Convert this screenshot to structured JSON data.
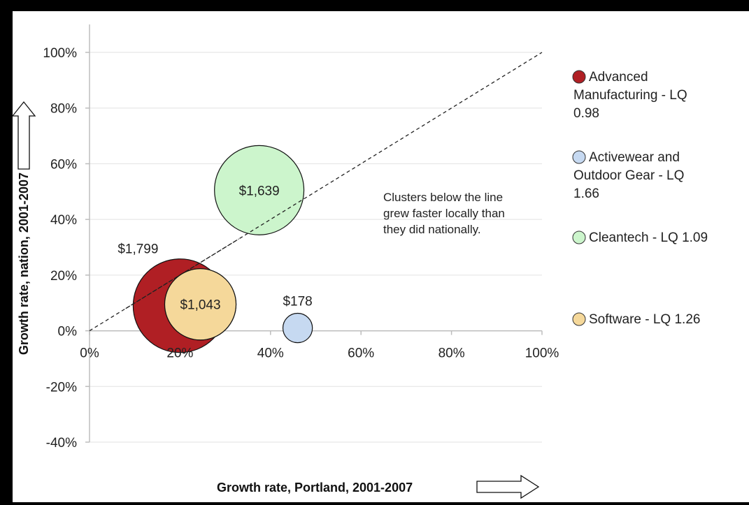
{
  "chart_data": {
    "type": "bubble",
    "x_axis": {
      "title": "Growth rate, Portland, 2001-2007",
      "min": 0,
      "max": 1.0,
      "ticks": [
        "0%",
        "20%",
        "40%",
        "60%",
        "80%",
        "100%"
      ]
    },
    "y_axis": {
      "title": "Growth rate, nation, 2001-2007",
      "min": -0.4,
      "max": 1.0,
      "ticks": [
        "-40%",
        "-20%",
        "0%",
        "20%",
        "40%",
        "60%",
        "80%",
        "100%"
      ]
    },
    "grid": true,
    "reference_line": {
      "from": [
        0,
        0
      ],
      "to": [
        1.0,
        1.0
      ],
      "style": "dashed"
    },
    "annotation": [
      "Clusters below the line",
      "grew faster locally than",
      "they did nationally."
    ],
    "series": [
      {
        "name": "Advanced Manufacturing - LQ 0.98",
        "legend_lines": [
          "Advanced",
          "Manufacturing - LQ",
          "0.98"
        ],
        "x": 0.2,
        "y": 0.09,
        "size": 1799,
        "label": "$1,799",
        "color": "#b01f24"
      },
      {
        "name": "Activewear and Outdoor Gear - LQ 1.66",
        "legend_lines": [
          "Activewear and",
          "Outdoor Gear - LQ",
          "1.66"
        ],
        "x": 0.46,
        "y": 0.01,
        "size": 178,
        "label": "$178",
        "color": "#c6d9f1"
      },
      {
        "name": "Cleantech - LQ 1.09",
        "legend_lines": [
          "Cleantech - LQ 1.09"
        ],
        "x": 0.375,
        "y": 0.505,
        "size": 1639,
        "label": "$1,639",
        "color": "#ccf5cc"
      },
      {
        "name": "Software - LQ 1.26",
        "legend_lines": [
          "Software - LQ 1.26"
        ],
        "x": 0.245,
        "y": 0.095,
        "size": 1043,
        "label": "$1,043",
        "color": "#f5d89a"
      }
    ],
    "legend_position": "right"
  }
}
